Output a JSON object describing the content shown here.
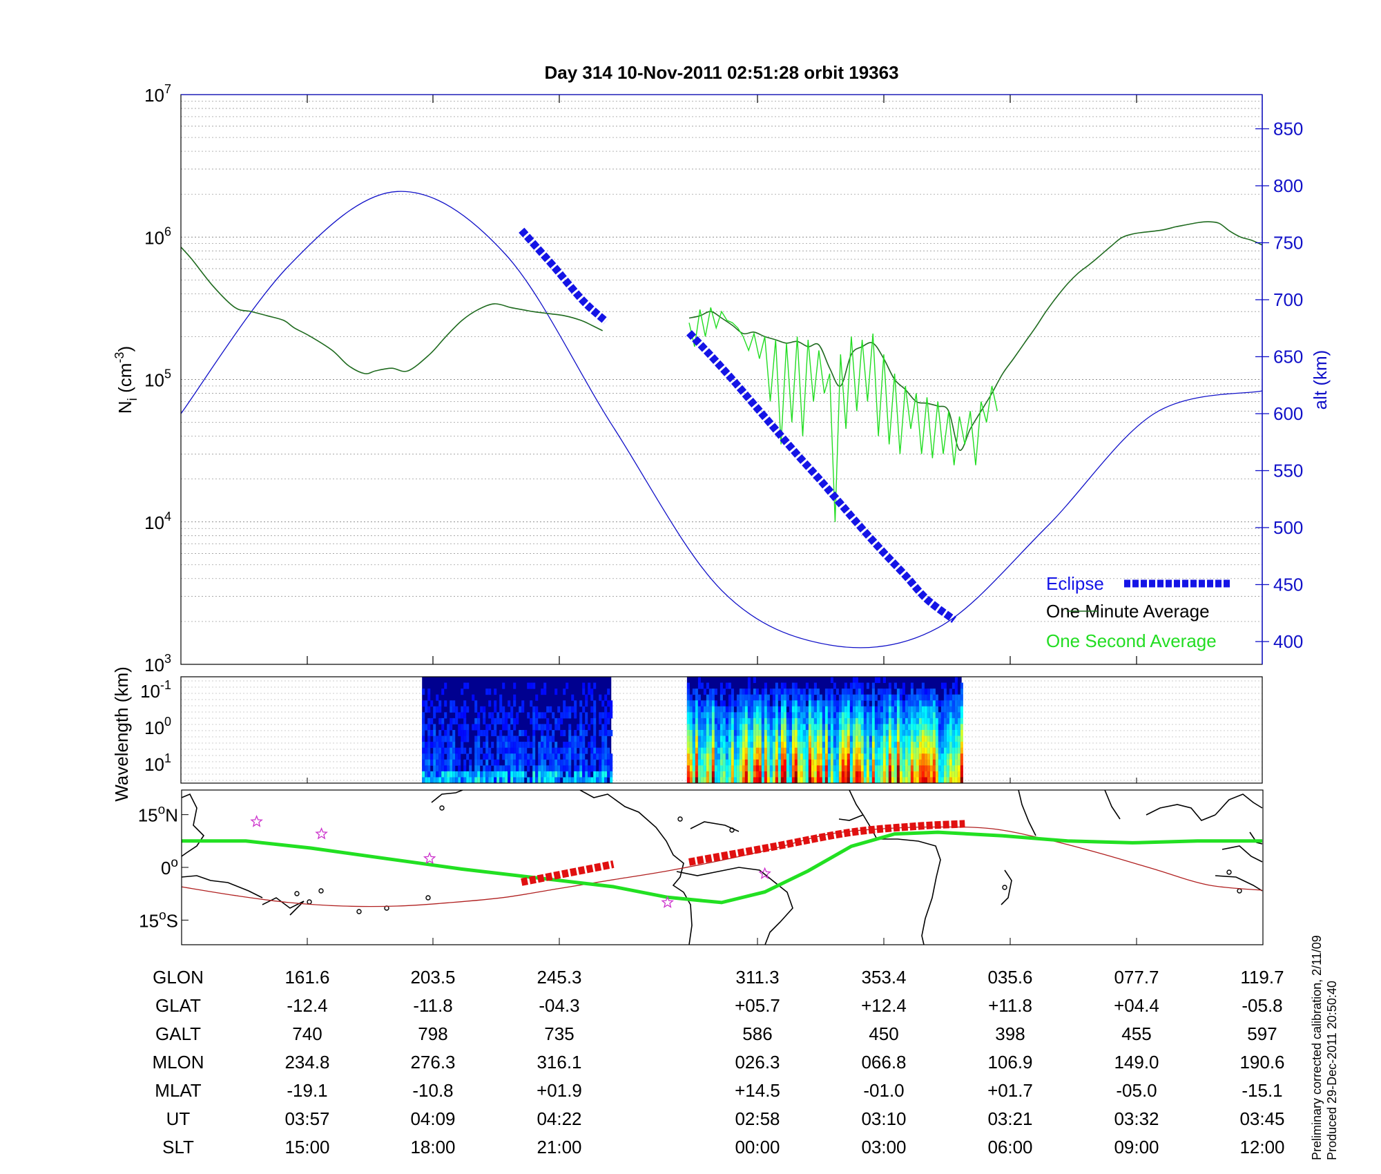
{
  "title": "Day 314  10-Nov-2011 02:51:28   orbit 19363",
  "side_note": [
    "Preliminary corrected calibration, 2/11/09",
    "Produced 29-Dec-2011 20:50:40"
  ],
  "colors": {
    "altitude": "#1010c8",
    "one_minute": "#1e6a1e",
    "one_second": "#22dd22",
    "eclipse": "#1414e6",
    "track_green": "#22e022",
    "track_red": "#e01010",
    "mag_equator": "#b02020",
    "star": "#cc33cc"
  },
  "chart_data": [
    {
      "type": "line",
      "panel": "density",
      "ylabel_main": "N",
      "ylabel_sub": "i",
      "ylabel_rest": " (cm",
      "ylabel_sup": "-3",
      "ylabel_end": ")",
      "yscale": "log",
      "ylim": [
        1000,
        10000000
      ],
      "y_ticks": [
        {
          "base": "10",
          "exp": "3"
        },
        {
          "base": "10",
          "exp": "4"
        },
        {
          "base": "10",
          "exp": "5"
        },
        {
          "base": "10",
          "exp": "6"
        },
        {
          "base": "10",
          "exp": "7"
        }
      ],
      "y2label": "alt (km)",
      "y2lim": [
        380,
        880
      ],
      "y2_ticks": [
        "400",
        "450",
        "500",
        "550",
        "600",
        "650",
        "700",
        "750",
        "800",
        "850"
      ],
      "x_ticks": [
        "",
        "161.6",
        "203.5",
        "245.3",
        "311.3",
        "353.4",
        "035.6",
        "077.7",
        "119.7"
      ],
      "legend": [
        {
          "label": "Eclipse"
        },
        {
          "label": "One Minute Average"
        },
        {
          "label": "One Second Average"
        }
      ],
      "series": [
        {
          "key": "altitude",
          "axis": "right",
          "x": [
            0,
            10,
            20,
            30,
            40,
            50,
            60,
            70,
            80,
            90,
            100
          ],
          "y": [
            600,
            730,
            795,
            740,
            588,
            445,
            397,
            412,
            500,
            600,
            620
          ]
        },
        {
          "key": "one_minute",
          "axis": "left",
          "x": [
            0,
            1,
            3,
            5,
            6.5,
            8,
            9.5,
            10.5,
            12,
            14,
            15.5,
            17,
            18,
            19.5,
            21,
            23,
            24.5,
            26,
            27.5,
            29,
            30.5,
            31.5,
            32.5,
            34,
            35.5,
            37,
            38,
            39
          ],
          "y": [
            850000,
            700000,
            450000,
            320000,
            300000,
            280000,
            260000,
            230000,
            200000,
            160000,
            125000,
            110000,
            115000,
            120000,
            115000,
            150000,
            200000,
            260000,
            310000,
            340000,
            320000,
            310000,
            300000,
            290000,
            280000,
            260000,
            240000,
            220000
          ]
        },
        {
          "key": "one_minute",
          "axis": "left",
          "x": [
            47,
            48,
            49,
            50,
            51,
            52,
            53,
            54,
            55,
            56,
            57,
            58,
            59,
            60,
            61,
            62,
            63,
            64,
            65,
            66,
            67,
            68,
            69,
            70,
            71,
            72,
            73,
            74,
            75,
            76,
            77,
            78,
            79,
            80,
            81,
            82,
            83,
            84,
            85,
            86,
            87,
            88,
            89,
            90,
            91,
            92,
            93,
            94,
            95,
            96,
            97,
            98,
            99,
            100
          ],
          "y": [
            270000,
            280000,
            300000,
            270000,
            240000,
            210000,
            215000,
            200000,
            190000,
            180000,
            185000,
            170000,
            175000,
            120000,
            90000,
            150000,
            170000,
            180000,
            140000,
            100000,
            85000,
            70000,
            68000,
            65000,
            60000,
            32000,
            45000,
            60000,
            80000,
            110000,
            140000,
            180000,
            230000,
            300000,
            380000,
            470000,
            560000,
            640000,
            740000,
            860000,
            990000,
            1050000,
            1080000,
            1100000,
            1130000,
            1180000,
            1220000,
            1260000,
            1280000,
            1250000,
            1100000,
            1000000,
            950000,
            880000
          ]
        },
        {
          "key": "one_second",
          "axis": "left",
          "x": [
            47,
            47.5,
            48,
            48.5,
            49,
            49.5,
            50,
            50.5,
            51,
            51.5,
            52,
            52.5,
            53,
            53.5,
            54,
            54.5,
            55,
            55.5,
            56,
            56.5,
            57,
            57.5,
            58,
            58.5,
            59,
            59.5,
            60,
            60.5,
            61,
            61.5,
            62,
            62.5,
            63,
            63.5,
            64,
            64.5,
            65,
            65.5,
            66,
            66.5,
            67,
            67.5,
            68,
            68.5,
            69,
            69.5,
            70,
            70.5,
            71,
            71.5,
            72,
            72.5,
            73,
            73.5,
            74,
            74.5,
            75,
            75.5
          ],
          "y": [
            250000,
            170000,
            310000,
            200000,
            320000,
            230000,
            300000,
            260000,
            250000,
            230000,
            200000,
            160000,
            210000,
            140000,
            200000,
            70000,
            190000,
            35000,
            180000,
            50000,
            200000,
            40000,
            190000,
            70000,
            160000,
            80000,
            110000,
            10000,
            150000,
            45000,
            200000,
            60000,
            190000,
            70000,
            210000,
            40000,
            150000,
            35000,
            110000,
            30000,
            90000,
            45000,
            80000,
            30000,
            75000,
            28000,
            70000,
            30000,
            60000,
            25000,
            55000,
            35000,
            60000,
            25000,
            70000,
            50000,
            90000,
            60000
          ]
        },
        {
          "key": "eclipse",
          "axis": "right",
          "style": "thick-dashed",
          "x": [
            31.5,
            33,
            34.5,
            36,
            37.5,
            39.3
          ],
          "y": [
            761,
            745,
            729,
            712,
            696,
            681
          ]
        },
        {
          "key": "eclipse",
          "axis": "right",
          "style": "thick-dashed",
          "x": [
            47,
            49,
            51,
            53,
            55,
            57,
            59,
            61,
            63,
            65,
            67,
            69,
            71.5
          ],
          "y": [
            671,
            651,
            630,
            608,
            586,
            564,
            543,
            521,
            499,
            478,
            458,
            437,
            419
          ]
        }
      ]
    },
    {
      "type": "heatmap",
      "panel": "spectrogram",
      "ylabel": "Wavelength (km)",
      "y_ticks": [
        {
          "base": "10",
          "exp": "-1"
        },
        {
          "base": "10",
          "exp": "0"
        },
        {
          "base": "10",
          "exp": "1"
        }
      ],
      "segments": [
        {
          "x": [
            22.3,
            39.8
          ],
          "colormap": "jet",
          "intensity": "low"
        },
        {
          "x": [
            46.8,
            72.2
          ],
          "colormap": "jet",
          "intensity": "high"
        }
      ]
    },
    {
      "type": "map",
      "panel": "ground-track",
      "y_ticks": [
        {
          "deg": "15",
          "sym": "o",
          "dir": "N"
        },
        {
          "deg": "0",
          "sym": "o",
          "dir": ""
        },
        {
          "deg": "15",
          "sym": "o",
          "dir": "S"
        }
      ],
      "ylim": [
        -22,
        22
      ],
      "magnetic_equator": {
        "x": [
          0,
          5,
          10,
          15,
          20,
          25,
          30,
          35,
          40,
          45,
          50,
          55,
          60,
          65,
          70,
          75,
          80,
          85,
          90,
          95,
          100
        ],
        "lat": [
          -5.5,
          -8,
          -10,
          -11,
          -11,
          -10,
          -8.5,
          -6,
          -3.5,
          -1,
          2,
          5.5,
          9.5,
          11,
          11.5,
          11,
          8,
          4,
          -0.5,
          -5,
          -6.5
        ]
      },
      "green_track": {
        "x": [
          0,
          6,
          12,
          19,
          26,
          33,
          40,
          45,
          50,
          54,
          58,
          62,
          66,
          70,
          76,
          82,
          88,
          94,
          100
        ],
        "lat": [
          7.5,
          7.5,
          5.5,
          2.5,
          -0.5,
          -3,
          -5.5,
          -8.5,
          -10,
          -7,
          -1,
          6,
          9.5,
          10,
          9,
          7.5,
          7,
          7.5,
          7.5
        ]
      },
      "red_track": [
        {
          "x": [
            31.5,
            40
          ],
          "lat": [
            -4.2,
            0.9
          ]
        },
        {
          "x": [
            47,
            55,
            62,
            68,
            72.5
          ],
          "lat": [
            1.5,
            6,
            10,
            11.7,
            12.4
          ]
        }
      ],
      "stars": [
        {
          "x": 7,
          "lat": 13
        },
        {
          "x": 13,
          "lat": 9.5
        },
        {
          "x": 23,
          "lat": 2.5
        },
        {
          "x": 45,
          "lat": -10
        },
        {
          "x": 54,
          "lat": -1.8
        }
      ]
    }
  ],
  "table": {
    "rows": [
      {
        "label": "GLON",
        "values": [
          "161.6",
          "203.5",
          "245.3",
          "311.3",
          "353.4",
          "035.6",
          "077.7",
          "119.7"
        ]
      },
      {
        "label": "GLAT",
        "values": [
          "-12.4",
          "-11.8",
          "-04.3",
          "+05.7",
          "+12.4",
          "+11.8",
          "+04.4",
          "-05.8"
        ]
      },
      {
        "label": "GALT",
        "values": [
          "740",
          "798",
          "735",
          "586",
          "450",
          "398",
          "455",
          "597"
        ]
      },
      {
        "label": "MLON",
        "values": [
          "234.8",
          "276.3",
          "316.1",
          "026.3",
          "066.8",
          "106.9",
          "149.0",
          "190.6"
        ]
      },
      {
        "label": "MLAT",
        "values": [
          "-19.1",
          "-10.8",
          "+01.9",
          "+14.5",
          "-01.0",
          "+01.7",
          "-05.0",
          "-15.1"
        ]
      },
      {
        "label": "UT",
        "values": [
          "03:57",
          "04:09",
          "04:22",
          "02:58",
          "03:10",
          "03:21",
          "03:32",
          "03:45"
        ]
      },
      {
        "label": "SLT",
        "values": [
          "15:00",
          "18:00",
          "21:00",
          "00:00",
          "03:00",
          "06:00",
          "09:00",
          "12:00"
        ]
      }
    ]
  }
}
